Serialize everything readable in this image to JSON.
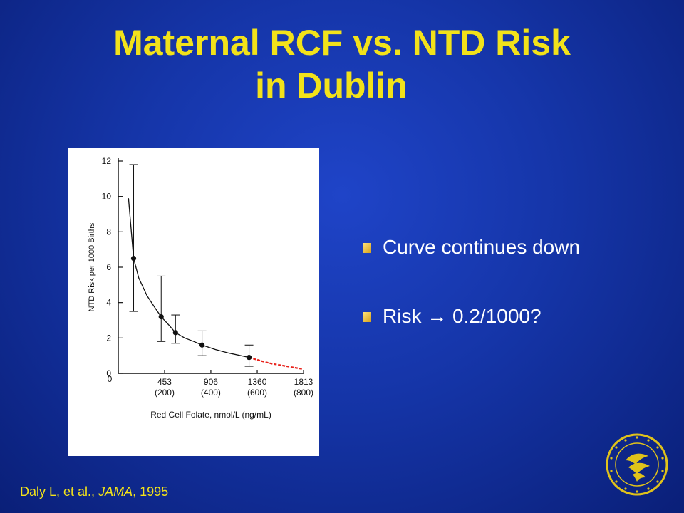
{
  "slide": {
    "title_line1": "Maternal RCF vs. NTD Risk",
    "title_line2": "in Dublin"
  },
  "bullets": [
    {
      "text": "Curve continues down"
    },
    {
      "text": "Risk  →  0.2/1000?"
    }
  ],
  "citation": {
    "prefix": "Daly L, et al., ",
    "journal": "JAMA",
    "suffix": ", 1995"
  },
  "colors": {
    "title": "#f2e21a",
    "body_text": "#ffffff",
    "extrapolation": "#e8231c",
    "bullet_marker": "#e0b23a"
  },
  "icons": {
    "seal": "hhs-seal-icon"
  },
  "chart_data": {
    "type": "line",
    "xlabel": "Red Cell Folate, nmol/L (ng/mL)",
    "ylabel": "NTD Risk per 1000 Births",
    "xlim": [
      0,
      1813
    ],
    "ylim": [
      0,
      12
    ],
    "x_ticks": [
      {
        "value": 0,
        "label": "0",
        "sublabel": ""
      },
      {
        "value": 453,
        "label": "453",
        "sublabel": "(200)"
      },
      {
        "value": 906,
        "label": "906",
        "sublabel": "(400)"
      },
      {
        "value": 1360,
        "label": "1360",
        "sublabel": "(600)"
      },
      {
        "value": 1813,
        "label": "1813",
        "sublabel": "(800)"
      }
    ],
    "y_ticks": [
      0,
      2,
      4,
      6,
      8,
      10,
      12
    ],
    "points": [
      {
        "x": 150,
        "y": 6.5,
        "low": 3.5,
        "high": 11.8
      },
      {
        "x": 420,
        "y": 3.2,
        "low": 1.8,
        "high": 5.5
      },
      {
        "x": 560,
        "y": 2.3,
        "low": 1.7,
        "high": 3.3
      },
      {
        "x": 820,
        "y": 1.6,
        "low": 1.0,
        "high": 2.4
      },
      {
        "x": 1280,
        "y": 0.9,
        "low": 0.4,
        "high": 1.6
      }
    ],
    "fitted_curve": {
      "x": [
        100,
        150,
        200,
        280,
        360,
        420,
        500,
        560,
        650,
        740,
        820,
        950,
        1080,
        1200,
        1280
      ],
      "y": [
        9.9,
        6.5,
        5.4,
        4.4,
        3.7,
        3.2,
        2.7,
        2.3,
        2.0,
        1.8,
        1.6,
        1.35,
        1.15,
        1.0,
        0.9
      ]
    },
    "extrapolation": {
      "x": [
        1280,
        1400,
        1500,
        1600,
        1700,
        1800
      ],
      "y": [
        0.9,
        0.7,
        0.55,
        0.45,
        0.35,
        0.25
      ]
    },
    "grid": false,
    "legend": "none"
  }
}
